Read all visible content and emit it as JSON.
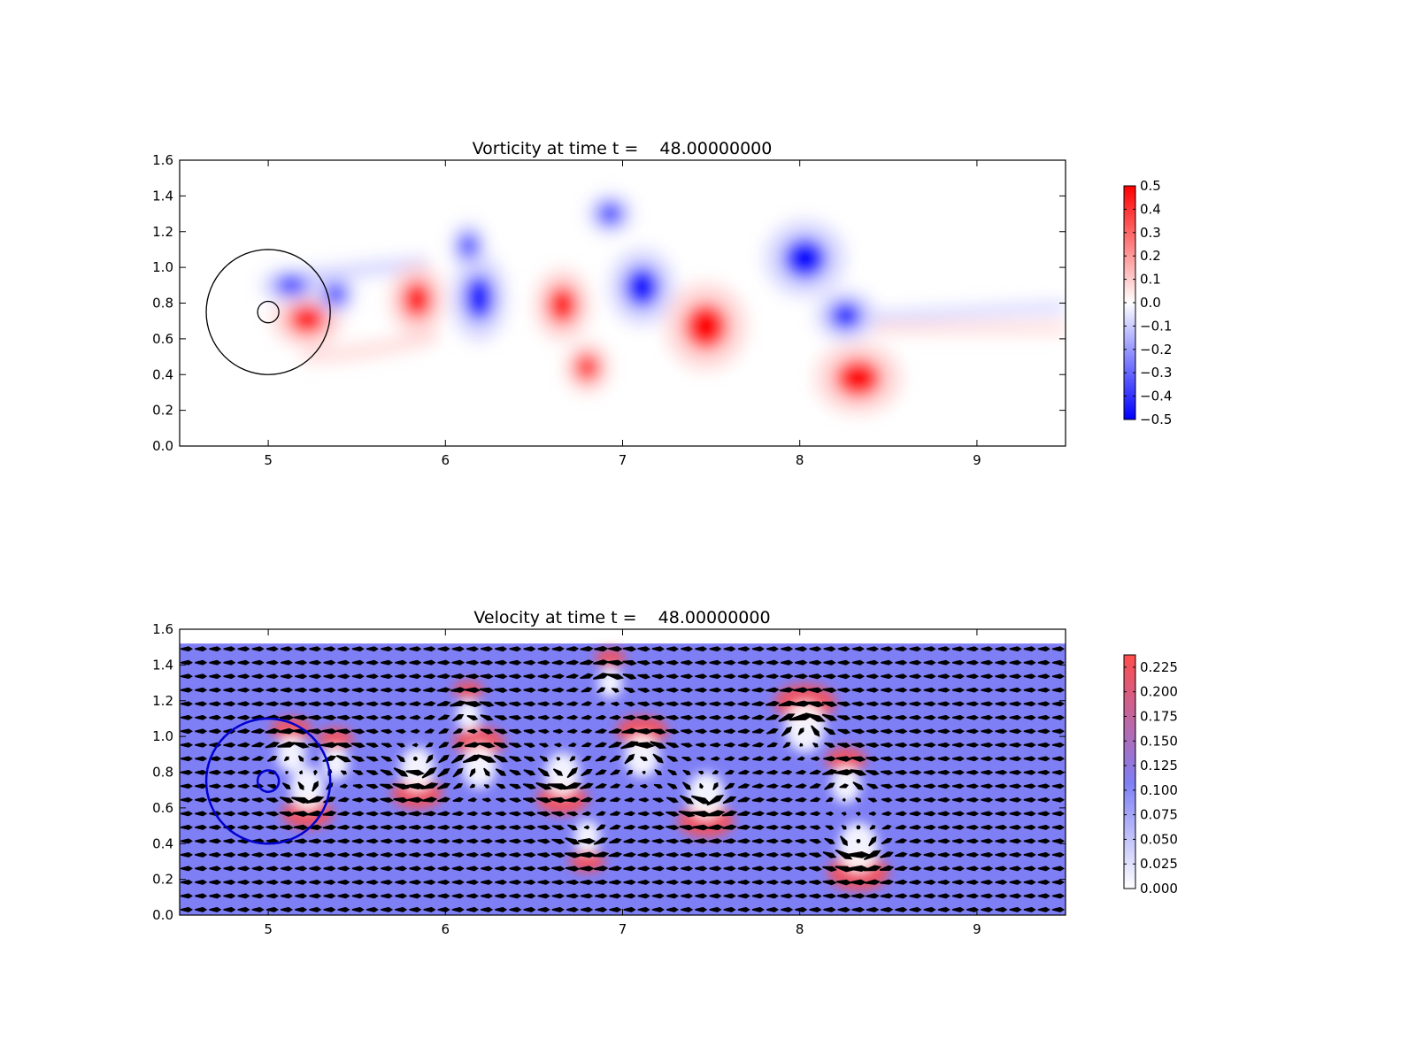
{
  "chart_data": [
    {
      "type": "heatmap",
      "title": "Vorticity at time t =    48.00000000",
      "xlabel": "",
      "ylabel": "",
      "xlim": [
        4.5,
        9.5
      ],
      "ylim": [
        0.0,
        1.6
      ],
      "xticks": [
        "5",
        "6",
        "7",
        "8",
        "9"
      ],
      "yticks": [
        "0.0",
        "0.2",
        "0.4",
        "0.6",
        "0.8",
        "1.0",
        "1.2",
        "1.4",
        "1.6"
      ],
      "grid": false,
      "colormap": {
        "low": "#0000ff",
        "mid": "#ffffff",
        "high": "#ff0000"
      },
      "colorbar": {
        "min": -0.5,
        "max": 0.5,
        "ticks": [
          "0.5",
          "0.4",
          "0.3",
          "0.2",
          "0.1",
          "0.0",
          "−0.1",
          "−0.2",
          "−0.3",
          "−0.4",
          "−0.5"
        ]
      },
      "body_circles": [
        {
          "cx": 5.0,
          "cy": 0.75,
          "r": 0.35,
          "color": "#000000"
        },
        {
          "cx": 5.0,
          "cy": 0.75,
          "r": 0.06,
          "color": "#000000"
        }
      ],
      "vortices": [
        {
          "x": 5.22,
          "y": 0.71,
          "rx": 0.14,
          "ry": 0.11,
          "value": 0.5
        },
        {
          "x": 5.13,
          "y": 0.9,
          "rx": 0.12,
          "ry": 0.07,
          "value": -0.5
        },
        {
          "x": 5.38,
          "y": 0.85,
          "rx": 0.08,
          "ry": 0.08,
          "value": -0.5
        },
        {
          "x": 5.84,
          "y": 0.82,
          "rx": 0.11,
          "ry": 0.14,
          "value": 0.5
        },
        {
          "x": 6.13,
          "y": 1.12,
          "rx": 0.07,
          "ry": 0.09,
          "value": -0.5
        },
        {
          "x": 6.19,
          "y": 0.83,
          "rx": 0.11,
          "ry": 0.17,
          "value": -0.5
        },
        {
          "x": 6.66,
          "y": 0.79,
          "rx": 0.11,
          "ry": 0.14,
          "value": 0.5
        },
        {
          "x": 6.8,
          "y": 0.44,
          "rx": 0.09,
          "ry": 0.1,
          "value": 0.5
        },
        {
          "x": 6.93,
          "y": 1.3,
          "rx": 0.09,
          "ry": 0.08,
          "value": -0.5
        },
        {
          "x": 7.11,
          "y": 0.89,
          "rx": 0.13,
          "ry": 0.15,
          "value": -0.5
        },
        {
          "x": 7.47,
          "y": 0.67,
          "rx": 0.16,
          "ry": 0.17,
          "value": 0.5
        },
        {
          "x": 8.03,
          "y": 1.05,
          "rx": 0.16,
          "ry": 0.15,
          "value": -0.5
        },
        {
          "x": 8.26,
          "y": 0.73,
          "rx": 0.12,
          "ry": 0.1,
          "value": -0.5
        },
        {
          "x": 8.33,
          "y": 0.38,
          "rx": 0.17,
          "ry": 0.14,
          "value": 0.5
        }
      ]
    },
    {
      "type": "heatmap",
      "title": "Velocity at time t =    48.00000000",
      "xlabel": "",
      "ylabel": "",
      "xlim": [
        4.5,
        9.5
      ],
      "ylim": [
        0.0,
        1.6
      ],
      "xticks": [
        "5",
        "6",
        "7",
        "8",
        "9"
      ],
      "yticks": [
        "0.0",
        "0.2",
        "0.4",
        "0.6",
        "0.8",
        "1.0",
        "1.2",
        "1.4",
        "1.6"
      ],
      "grid": false,
      "field_ymax": 1.52,
      "colormap": {
        "low": "#ffffff",
        "mid": "#7f7ff5",
        "high": "#ff4d4d"
      },
      "colorbar": {
        "min": 0.0,
        "max": 0.2375,
        "ticks": [
          "0.225",
          "0.200",
          "0.175",
          "0.150",
          "0.125",
          "0.100",
          "0.075",
          "0.050",
          "0.025",
          "0.000"
        ]
      },
      "base_speed": 0.1,
      "quiver": {
        "nx": 62,
        "ny": 20,
        "color": "#000000"
      },
      "body_circles": [
        {
          "cx": 5.0,
          "cy": 0.75,
          "r": 0.35,
          "color": "#0000cc"
        },
        {
          "cx": 5.0,
          "cy": 0.75,
          "r": 0.06,
          "color": "#0000cc"
        }
      ],
      "vortices": [
        {
          "x": 5.22,
          "y": 0.71,
          "s": 1.0
        },
        {
          "x": 5.13,
          "y": 0.9,
          "s": -0.8
        },
        {
          "x": 5.38,
          "y": 0.85,
          "s": -0.7
        },
        {
          "x": 5.84,
          "y": 0.82,
          "s": 1.0
        },
        {
          "x": 6.13,
          "y": 1.12,
          "s": -0.6
        },
        {
          "x": 6.19,
          "y": 0.83,
          "s": -1.0
        },
        {
          "x": 6.66,
          "y": 0.79,
          "s": 1.0
        },
        {
          "x": 6.8,
          "y": 0.44,
          "s": 0.7
        },
        {
          "x": 6.93,
          "y": 1.3,
          "s": -0.6
        },
        {
          "x": 7.11,
          "y": 0.89,
          "s": -1.0
        },
        {
          "x": 7.47,
          "y": 0.67,
          "s": 1.1
        },
        {
          "x": 8.03,
          "y": 1.05,
          "s": -1.2
        },
        {
          "x": 8.26,
          "y": 0.73,
          "s": -0.8
        },
        {
          "x": 8.33,
          "y": 0.38,
          "s": 1.2
        }
      ]
    }
  ]
}
